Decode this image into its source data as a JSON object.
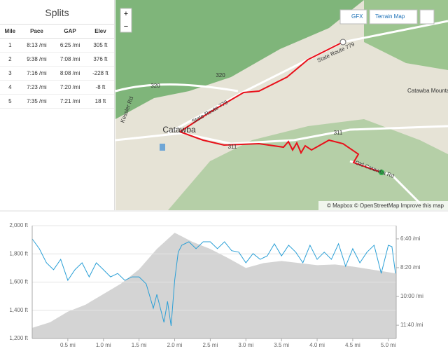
{
  "splits": {
    "title": "Splits",
    "columns": [
      "Mile",
      "Pace",
      "GAP",
      "Elev"
    ],
    "rows": [
      [
        "1",
        "8:13 /mi",
        "6:25 /mi",
        "305 ft"
      ],
      [
        "2",
        "9:38 /mi",
        "7:08 /mi",
        "376 ft"
      ],
      [
        "3",
        "7:16 /mi",
        "8:08 /mi",
        "-228 ft"
      ],
      [
        "4",
        "7:23 /mi",
        "7:20 /mi",
        "-8 ft"
      ],
      [
        "5",
        "7:35 /mi",
        "7:21 /mi",
        "18 ft"
      ]
    ]
  },
  "map": {
    "zoom_in": "+",
    "zoom_out": "−",
    "gfx_button": "GFX",
    "map_type_button": "Terrain Map",
    "attribution": "© Mapbox © OpenStreetMap Improve this map",
    "labels": [
      "Catawba",
      "State Route 779",
      "State Route 779",
      "Old Catawba Rd",
      "320",
      "320",
      "311",
      "311",
      "Catawba Mountain",
      "Kessler Rd"
    ]
  },
  "chart_data": {
    "type": "area-line",
    "ylim": [
      1200,
      2000
    ],
    "yticks": [
      {
        "value": 1200,
        "label": "1,200 ft"
      },
      {
        "value": 1400,
        "label": "1,400 ft"
      },
      {
        "value": 1600,
        "label": "1,600 ft"
      },
      {
        "value": 1800,
        "label": "1,800 ft"
      },
      {
        "value": 2000,
        "label": "2,000 ft"
      }
    ],
    "y2lim": [
      746,
      354
    ],
    "y2ticks": [
      {
        "value": 400,
        "label": "6:40 /mi"
      },
      {
        "value": 500,
        "label": "8:20 /mi"
      },
      {
        "value": 600,
        "label": "10:00 /mi"
      },
      {
        "value": 700,
        "label": "11:40 /mi"
      }
    ],
    "xlim": [
      0,
      5.11
    ],
    "xticks": [
      {
        "value": 0.5,
        "label": "0.5 mi"
      },
      {
        "value": 1,
        "label": "1.0 mi"
      },
      {
        "value": 1.5,
        "label": "1.5 mi"
      },
      {
        "value": 2,
        "label": "2.0 mi"
      },
      {
        "value": 2.5,
        "label": "2.5 mi"
      },
      {
        "value": 3,
        "label": "3.0 mi"
      },
      {
        "value": 3.5,
        "label": "3.5 mi"
      },
      {
        "value": 4,
        "label": "4.0 mi"
      },
      {
        "value": 4.5,
        "label": "4.5 mi"
      },
      {
        "value": 5,
        "label": "5.0 mi"
      }
    ],
    "grid": true,
    "series": [
      {
        "kind": "area",
        "color": "#d4d4d4",
        "x": [
          0,
          0.25,
          0.5,
          0.75,
          1,
          1.25,
          1.5,
          1.75,
          2,
          2.25,
          2.5,
          2.75,
          3,
          3.25,
          3.5,
          3.75,
          4,
          4.25,
          4.5,
          4.75,
          5,
          5.11
        ],
        "values": [
          1275,
          1315,
          1390,
          1440,
          1515,
          1590,
          1690,
          1835,
          1950,
          1885,
          1835,
          1770,
          1700,
          1735,
          1750,
          1735,
          1720,
          1725,
          1710,
          1690,
          1670,
          1660
        ]
      },
      {
        "kind": "line",
        "axis": "y2",
        "color": "#2a9fd6",
        "x": [
          0,
          0.1,
          0.2,
          0.3,
          0.4,
          0.5,
          0.6,
          0.7,
          0.8,
          0.9,
          1,
          1.1,
          1.2,
          1.3,
          1.4,
          1.5,
          1.6,
          1.7,
          1.75,
          1.85,
          1.9,
          1.95,
          2,
          2.05,
          2.1,
          2.2,
          2.3,
          2.4,
          2.5,
          2.6,
          2.7,
          2.8,
          2.9,
          3,
          3.1,
          3.2,
          3.3,
          3.4,
          3.5,
          3.6,
          3.7,
          3.8,
          3.9,
          4,
          4.1,
          4.2,
          4.3,
          4.4,
          4.5,
          4.6,
          4.7,
          4.8,
          4.9,
          5,
          5.05,
          5.1
        ],
        "values": [
          400,
          434,
          483,
          507,
          471,
          544,
          507,
          483,
          532,
          483,
          507,
          532,
          520,
          544,
          532,
          532,
          556,
          641,
          593,
          690,
          617,
          702,
          544,
          446,
          422,
          410,
          434,
          410,
          410,
          434,
          410,
          441,
          446,
          483,
          451,
          471,
          459,
          417,
          459,
          422,
          446,
          483,
          422,
          471,
          446,
          471,
          417,
          495,
          434,
          483,
          446,
          422,
          520,
          422,
          427,
          520
        ]
      }
    ]
  }
}
